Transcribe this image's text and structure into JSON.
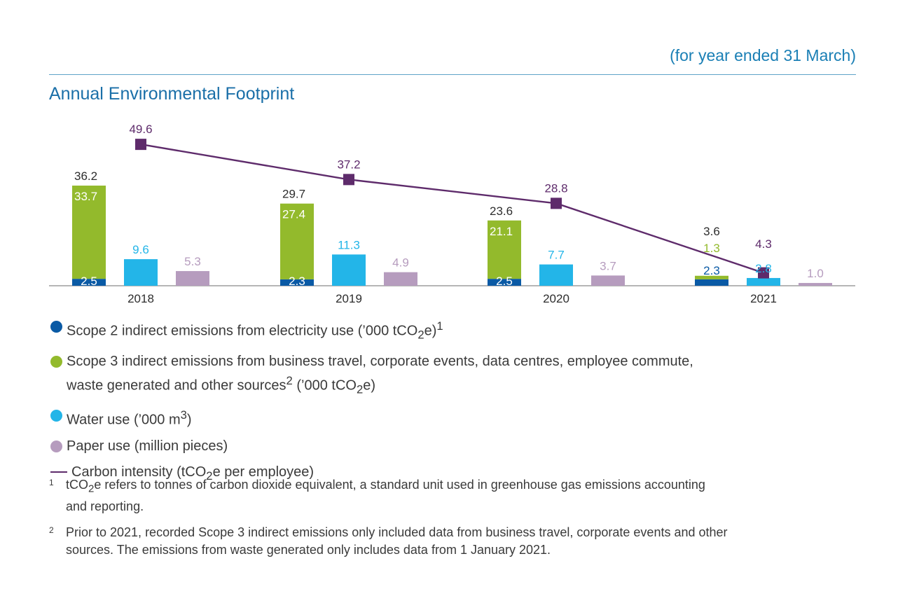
{
  "header": {
    "period_note": "(for year ended 31 March)",
    "title": "Annual Environmental Footprint"
  },
  "colors": {
    "scope2": "#0a5aa5",
    "scope3": "#93ba2c",
    "water": "#23b5e8",
    "paper": "#b69cbe",
    "carbon": "#5e2b6b",
    "scope3_label_light": "#ffffff"
  },
  "chart_data": {
    "type": "bar",
    "categories": [
      "2018",
      "2019",
      "2020",
      "2021"
    ],
    "series": [
      {
        "key": "scope2",
        "values": [
          2.5,
          2.3,
          2.5,
          2.3
        ],
        "kind": "stacked-bar-bottom"
      },
      {
        "key": "scope3",
        "values": [
          33.7,
          27.4,
          21.1,
          1.3
        ],
        "kind": "stacked-bar-top"
      },
      {
        "key": "water",
        "values": [
          9.6,
          11.3,
          7.7,
          2.8
        ],
        "kind": "bar"
      },
      {
        "key": "paper",
        "values": [
          5.3,
          4.9,
          3.7,
          1.0
        ],
        "kind": "bar"
      },
      {
        "key": "carbon",
        "values": [
          49.6,
          37.2,
          28.8,
          4.3
        ],
        "kind": "line"
      }
    ],
    "totals": [
      "36.2",
      "29.7",
      "23.6",
      "3.6"
    ],
    "value_labels": {
      "scope2": [
        "2.5",
        "2.3",
        "2.5",
        "2.3"
      ],
      "scope3": [
        "33.7",
        "27.4",
        "21.1",
        "1.3"
      ],
      "water": [
        "9.6",
        "11.3",
        "7.7",
        "2.8"
      ],
      "paper": [
        "5.3",
        "4.9",
        "3.7",
        "1.0"
      ],
      "carbon": [
        "49.6",
        "37.2",
        "28.8",
        "4.3"
      ]
    },
    "grid": false
  },
  "legend": {
    "scope2": {
      "text": "Scope 2 indirect emissions from electricity use (’000 tCO",
      "sub": "2",
      "tail": "e)",
      "sup": "1"
    },
    "scope3": {
      "text": "Scope 3 indirect emissions from business travel, corporate events, data centres, employee commute,",
      "text2": "waste generated and other sources",
      "sup": "2",
      "mid": " (’000 tCO",
      "sub": "2",
      "tail": "e)"
    },
    "water": {
      "text": "Water use (’000 m",
      "sup": "3",
      "tail": ")"
    },
    "paper": {
      "text": "Paper use (million pieces)"
    },
    "carbon": {
      "text": "Carbon intensity (tCO",
      "sub": "2",
      "tail": "e per employee)"
    }
  },
  "footnotes": [
    {
      "mark": "1",
      "pre": "tCO",
      "sub": "2",
      "text": "e refers to tonnes of carbon dioxide equivalent, a standard unit used in greenhouse gas emissions accounting",
      "text2": "and reporting."
    },
    {
      "mark": "2",
      "text": "Prior to 2021, recorded Scope 3 indirect emissions only included data from business travel, corporate events and other",
      "text2": "sources. The emissions from waste generated only includes data from 1 January 2021."
    }
  ]
}
